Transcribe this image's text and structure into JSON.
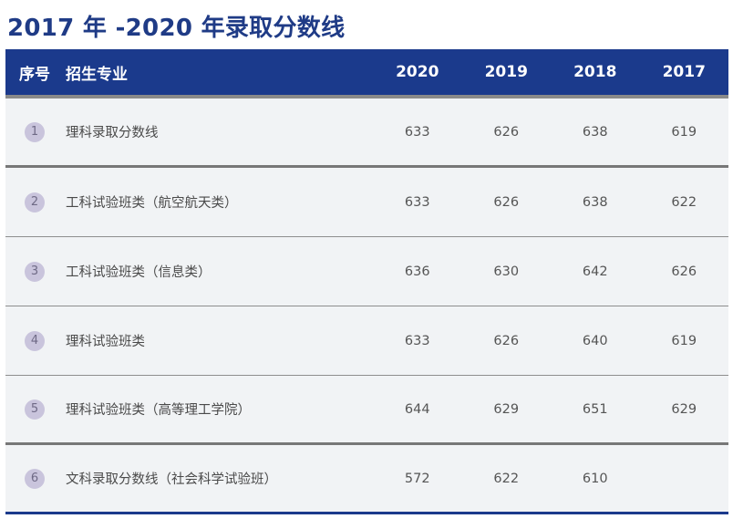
{
  "title": "2017 年 -2020 年录取分数线",
  "header": {
    "index": "序号",
    "major": "招生专业",
    "years": [
      "2020",
      "2019",
      "2018",
      "2017"
    ]
  },
  "rows": [
    {
      "index": "1",
      "name": "理科录取分数线",
      "scores": [
        "633",
        "626",
        "638",
        "619"
      ]
    },
    {
      "index": "2",
      "name": "工科试验班类（航空航天类）",
      "scores": [
        "633",
        "626",
        "638",
        "622"
      ]
    },
    {
      "index": "3",
      "name": "工科试验班类（信息类）",
      "scores": [
        "636",
        "630",
        "642",
        "626"
      ]
    },
    {
      "index": "4",
      "name": "理科试验班类",
      "scores": [
        "633",
        "626",
        "640",
        "619"
      ]
    },
    {
      "index": "5",
      "name": "理科试验班类（高等理工学院）",
      "scores": [
        "644",
        "629",
        "651",
        "629"
      ]
    },
    {
      "index": "6",
      "name": "文科录取分数线（社会科学试验班）",
      "scores": [
        "572",
        "622",
        "610",
        ""
      ]
    }
  ],
  "colors": {
    "header_bg": "#1b3a8c",
    "title_text": "#1f3b86",
    "row_bg": "#f1f3f5",
    "badge_bg": "#c9c4dc"
  }
}
